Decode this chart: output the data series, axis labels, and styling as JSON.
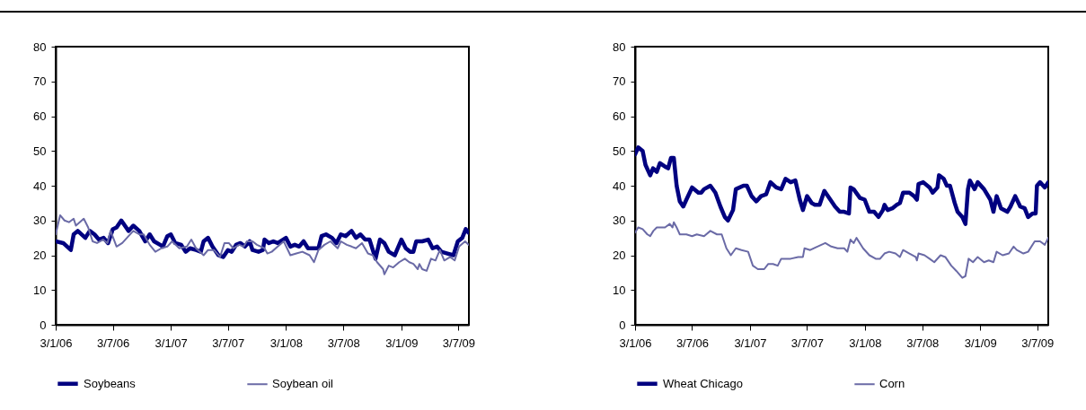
{
  "chart_data": [
    {
      "type": "line",
      "xlim": [
        "2006-01-03",
        "2009-08-05"
      ],
      "ylim": [
        0,
        80
      ],
      "yticks": [
        0,
        10,
        20,
        30,
        40,
        50,
        60,
        70,
        80
      ],
      "xticks": [
        {
          "value": "2006-01-03",
          "label": "3/1/06"
        },
        {
          "value": "2006-07-03",
          "label": "3/7/06"
        },
        {
          "value": "2007-01-03",
          "label": "3/1/07"
        },
        {
          "value": "2007-07-03",
          "label": "3/7/07"
        },
        {
          "value": "2008-01-03",
          "label": "3/1/08"
        },
        {
          "value": "2008-07-03",
          "label": "3/7/08"
        },
        {
          "value": "2009-01-03",
          "label": "3/1/09"
        },
        {
          "value": "2009-07-03",
          "label": "3/7/09"
        }
      ],
      "grid": false,
      "legend": "bottom",
      "series": [
        {
          "name": "Soybeans",
          "color": "#000080",
          "x": [
            "2006-01-03",
            "2006-01-27",
            "2006-02-20",
            "2006-03-01",
            "2006-03-14",
            "2006-04-07",
            "2006-04-21",
            "2006-05-06",
            "2006-05-20",
            "2006-06-04",
            "2006-06-18",
            "2006-07-03",
            "2006-07-15",
            "2006-07-30",
            "2006-08-22",
            "2006-09-06",
            "2006-09-25",
            "2006-10-04",
            "2006-10-14",
            "2006-10-28",
            "2006-11-11",
            "2006-11-30",
            "2006-12-09",
            "2006-12-23",
            "2007-01-03",
            "2007-01-17",
            "2007-02-05",
            "2007-02-19",
            "2007-03-05",
            "2007-03-24",
            "2007-04-08",
            "2007-04-17",
            "2007-05-01",
            "2007-05-15",
            "2007-06-03",
            "2007-06-18",
            "2007-07-03",
            "2007-07-15",
            "2007-07-29",
            "2007-08-12",
            "2007-08-26",
            "2007-09-10",
            "2007-09-19",
            "2007-10-08",
            "2007-10-22",
            "2007-10-27",
            "2007-11-10",
            "2007-11-24",
            "2007-12-08",
            "2008-01-03",
            "2008-01-17",
            "2008-01-31",
            "2008-02-14",
            "2008-02-28",
            "2008-03-13",
            "2008-04-01",
            "2008-04-15",
            "2008-04-25",
            "2008-05-09",
            "2008-05-28",
            "2008-06-11",
            "2008-06-25",
            "2008-07-10",
            "2008-07-29",
            "2008-08-12",
            "2008-08-26",
            "2008-09-10",
            "2008-09-24",
            "2008-10-13",
            "2008-10-27",
            "2008-11-10",
            "2008-11-24",
            "2008-12-13",
            "2009-01-03",
            "2009-01-17",
            "2009-01-31",
            "2009-02-10",
            "2009-02-19",
            "2009-03-10",
            "2009-03-29",
            "2009-04-12",
            "2009-04-26",
            "2009-05-10",
            "2009-05-29",
            "2009-06-17",
            "2009-07-01",
            "2009-07-15",
            "2009-07-26",
            "2009-08-04"
          ],
          "values": [
            24,
            23.5,
            21.5,
            26,
            27,
            25,
            27,
            26,
            24.5,
            25,
            23.5,
            27.5,
            28,
            30,
            27,
            28.5,
            27,
            25.5,
            24,
            26,
            24,
            23,
            22.5,
            25.5,
            26,
            23.5,
            23,
            21,
            22,
            21.5,
            21,
            24,
            25,
            22.5,
            20,
            19.5,
            21.5,
            21,
            23,
            23.5,
            22.5,
            24,
            21.5,
            21,
            21.5,
            24.5,
            23.5,
            24,
            23.5,
            25,
            22.5,
            23,
            22.5,
            24,
            22,
            22,
            22,
            25.5,
            26,
            25,
            23.5,
            26,
            25.5,
            27,
            25,
            26,
            24.5,
            24.5,
            19,
            24.5,
            23.5,
            21,
            20,
            24.5,
            22,
            21,
            21,
            24,
            24,
            24.5,
            22,
            22.5,
            21,
            20.5,
            20,
            24,
            25,
            27.5,
            26.5
          ]
        },
        {
          "name": "Soybean oil",
          "color": "#6a6aa6",
          "x": [
            "2006-01-03",
            "2006-01-17",
            "2006-01-31",
            "2006-02-14",
            "2006-03-01",
            "2006-03-08",
            "2006-04-02",
            "2006-04-16",
            "2006-04-30",
            "2006-05-14",
            "2006-06-02",
            "2006-06-16",
            "2006-06-26",
            "2006-07-15",
            "2006-08-02",
            "2006-09-06",
            "2006-09-25",
            "2006-10-09",
            "2006-10-28",
            "2006-11-15",
            "2006-12-04",
            "2006-12-23",
            "2007-01-07",
            "2007-01-30",
            "2007-02-23",
            "2007-03-09",
            "2007-03-24",
            "2007-04-17",
            "2007-05-01",
            "2007-05-20",
            "2007-06-08",
            "2007-06-22",
            "2007-07-06",
            "2007-07-20",
            "2007-08-08",
            "2007-08-22",
            "2007-09-01",
            "2007-09-19",
            "2007-10-03",
            "2007-10-27",
            "2007-11-05",
            "2007-11-19",
            "2007-12-08",
            "2007-12-27",
            "2008-01-17",
            "2008-02-05",
            "2008-02-24",
            "2008-03-18",
            "2008-04-01",
            "2008-04-15",
            "2008-05-04",
            "2008-05-23",
            "2008-06-15",
            "2008-06-25",
            "2008-07-14",
            "2008-07-29",
            "2008-08-12",
            "2008-08-31",
            "2008-09-19",
            "2008-10-04",
            "2008-10-18",
            "2008-11-06",
            "2008-11-10",
            "2008-11-24",
            "2008-12-08",
            "2008-12-27",
            "2009-01-14",
            "2009-01-28",
            "2009-02-10",
            "2009-02-24",
            "2009-03-01",
            "2009-03-10",
            "2009-03-24",
            "2009-04-07",
            "2009-04-21",
            "2009-05-05",
            "2009-05-19",
            "2009-06-07",
            "2009-06-21",
            "2009-07-05",
            "2009-07-24",
            "2009-08-04"
          ],
          "values": [
            26,
            31.5,
            30,
            29.5,
            30.5,
            28.5,
            30.5,
            28,
            24,
            23.5,
            24.5,
            23.5,
            27,
            22.5,
            23.5,
            27,
            26,
            26,
            23,
            21,
            22,
            22.5,
            24,
            22,
            22.5,
            24.5,
            22,
            20,
            21.5,
            21.5,
            19.5,
            23.5,
            23.5,
            22,
            23,
            22.5,
            24,
            24,
            23,
            22,
            20.5,
            21,
            22.5,
            24,
            20,
            20.5,
            21,
            20,
            18,
            21.5,
            23,
            24,
            22,
            24,
            23,
            22.5,
            22,
            23.5,
            20.5,
            20,
            18,
            16,
            14.5,
            17,
            16.5,
            18,
            19,
            18,
            17.5,
            16,
            17.5,
            16,
            15.5,
            19,
            18.5,
            21.5,
            18.5,
            19.5,
            18.5,
            22.5,
            24,
            23
          ]
        }
      ]
    },
    {
      "type": "line",
      "xlim": [
        "2006-01-03",
        "2009-08-07"
      ],
      "ylim": [
        0,
        80
      ],
      "yticks": [
        0,
        10,
        20,
        30,
        40,
        50,
        60,
        70,
        80
      ],
      "xticks": [
        {
          "value": "2006-01-03",
          "label": "3/1/06"
        },
        {
          "value": "2006-07-03",
          "label": "3/7/06"
        },
        {
          "value": "2007-01-03",
          "label": "3/1/07"
        },
        {
          "value": "2007-07-03",
          "label": "3/7/07"
        },
        {
          "value": "2008-01-03",
          "label": "3/1/08"
        },
        {
          "value": "2008-07-03",
          "label": "3/7/08"
        },
        {
          "value": "2009-01-03",
          "label": "3/1/09"
        },
        {
          "value": "2009-07-03",
          "label": "3/7/09"
        }
      ],
      "grid": false,
      "legend": "bottom",
      "series": [
        {
          "name": "Wheat Chicago",
          "color": "#000080",
          "x": [
            "2006-01-03",
            "2006-01-13",
            "2006-01-27",
            "2006-02-05",
            "2006-02-20",
            "2006-03-01",
            "2006-03-13",
            "2006-03-23",
            "2006-04-08",
            "2006-04-18",
            "2006-04-27",
            "2006-05-06",
            "2006-05-15",
            "2006-05-25",
            "2006-06-05",
            "2006-06-15",
            "2006-07-03",
            "2006-07-23",
            "2006-08-01",
            "2006-08-10",
            "2006-08-30",
            "2006-09-15",
            "2006-10-01",
            "2006-10-15",
            "2006-10-25",
            "2006-11-10",
            "2006-11-19",
            "2006-12-13",
            "2006-12-24",
            "2007-01-08",
            "2007-01-23",
            "2007-02-07",
            "2007-02-23",
            "2007-03-09",
            "2007-03-27",
            "2007-04-12",
            "2007-04-26",
            "2007-05-12",
            "2007-05-27",
            "2007-06-10",
            "2007-06-20",
            "2007-07-03",
            "2007-07-18",
            "2007-07-28",
            "2007-08-12",
            "2007-08-27",
            "2007-09-15",
            "2007-09-30",
            "2007-10-15",
            "2007-10-29",
            "2007-11-13",
            "2007-11-18",
            "2007-11-28",
            "2007-12-18",
            "2008-01-02",
            "2008-01-17",
            "2008-02-01",
            "2008-02-15",
            "2008-02-29",
            "2008-03-05",
            "2008-03-15",
            "2008-03-30",
            "2008-04-13",
            "2008-04-23",
            "2008-05-03",
            "2008-05-23",
            "2008-06-07",
            "2008-06-16",
            "2008-06-21",
            "2008-07-06",
            "2008-07-26",
            "2008-08-05",
            "2008-08-20",
            "2008-08-25",
            "2008-09-09",
            "2008-09-19",
            "2008-09-29",
            "2008-10-14",
            "2008-10-23",
            "2008-11-07",
            "2008-11-17",
            "2008-11-25",
            "2008-12-01",
            "2008-12-16",
            "2008-12-26",
            "2009-01-15",
            "2009-02-04",
            "2009-02-14",
            "2009-02-24",
            "2009-03-10",
            "2009-03-30",
            "2009-04-09",
            "2009-04-24",
            "2009-05-10",
            "2009-05-24",
            "2009-06-04",
            "2009-06-18",
            "2009-06-28",
            "2009-07-02",
            "2009-07-12",
            "2009-07-27",
            "2009-08-07"
          ],
          "values": [
            49,
            51,
            50,
            46,
            43,
            45,
            44,
            46.5,
            45.5,
            45,
            48,
            48,
            40,
            35.5,
            34,
            36,
            39.5,
            38,
            38,
            39,
            40,
            38,
            34,
            31,
            30,
            33,
            39,
            40,
            40,
            37,
            35.5,
            37,
            37.5,
            41,
            39.5,
            39,
            42,
            41,
            41.5,
            36,
            33,
            37,
            35,
            34.5,
            34.5,
            38.5,
            36,
            34,
            32.5,
            32.5,
            32,
            39.5,
            39,
            36.5,
            36,
            32.5,
            32.5,
            31,
            33,
            34.5,
            33,
            33.5,
            34.5,
            35,
            38,
            38,
            37,
            36,
            40.5,
            41,
            39.5,
            38,
            39.5,
            43,
            42,
            40,
            40,
            35,
            32.5,
            31,
            29,
            39,
            41.5,
            39,
            41,
            39,
            36,
            32.5,
            37,
            33.5,
            32.5,
            34,
            37,
            34,
            33.5,
            31,
            32,
            32,
            40,
            41,
            39.5,
            41
          ]
        },
        {
          "name": "Corn",
          "color": "#6a6aa6",
          "x": [
            "2006-01-03",
            "2006-01-13",
            "2006-01-27",
            "2006-02-11",
            "2006-02-20",
            "2006-03-02",
            "2006-03-13",
            "2006-04-08",
            "2006-04-23",
            "2006-05-02",
            "2006-05-06",
            "2006-05-15",
            "2006-05-25",
            "2006-06-15",
            "2006-07-03",
            "2006-07-18",
            "2006-08-10",
            "2006-08-30",
            "2006-09-20",
            "2006-10-05",
            "2006-10-20",
            "2006-11-03",
            "2006-11-19",
            "2006-12-07",
            "2006-12-28",
            "2007-01-12",
            "2007-01-28",
            "2007-02-17",
            "2007-03-02",
            "2007-03-17",
            "2007-04-01",
            "2007-04-12",
            "2007-04-26",
            "2007-05-12",
            "2007-06-05",
            "2007-06-20",
            "2007-06-25",
            "2007-07-13",
            "2007-08-05",
            "2007-08-30",
            "2007-09-18",
            "2007-10-08",
            "2007-10-29",
            "2007-11-08",
            "2007-11-18",
            "2007-11-28",
            "2007-12-07",
            "2007-12-28",
            "2008-01-17",
            "2008-02-06",
            "2008-02-20",
            "2008-03-05",
            "2008-03-20",
            "2008-04-09",
            "2008-04-23",
            "2008-05-03",
            "2008-05-23",
            "2008-06-12",
            "2008-06-16",
            "2008-06-21",
            "2008-07-10",
            "2008-07-26",
            "2008-08-10",
            "2008-08-30",
            "2008-09-14",
            "2008-10-03",
            "2008-10-19",
            "2008-11-07",
            "2008-11-17",
            "2008-11-27",
            "2008-12-11",
            "2008-12-26",
            "2009-01-15",
            "2009-01-30",
            "2009-02-14",
            "2009-02-24",
            "2009-03-15",
            "2009-04-04",
            "2009-04-19",
            "2009-04-29",
            "2009-05-20",
            "2009-06-04",
            "2009-06-25",
            "2009-07-12",
            "2009-07-27",
            "2009-08-07"
          ],
          "values": [
            26.5,
            28,
            27.5,
            26,
            25.5,
            27,
            28,
            28,
            29,
            28,
            29.5,
            28,
            26,
            26,
            25.5,
            26,
            25.5,
            27,
            26,
            26,
            22,
            20,
            22,
            21.5,
            21,
            17,
            16,
            16,
            17.5,
            17.5,
            17,
            19,
            19,
            19,
            19.5,
            19.5,
            22,
            21.5,
            22.5,
            23.5,
            22.5,
            22,
            22,
            21,
            24.5,
            23.5,
            25,
            22,
            20,
            19,
            19,
            20.5,
            21,
            20.5,
            19.5,
            21.5,
            20.5,
            19.5,
            18.5,
            20.5,
            20,
            19,
            18,
            20,
            19.5,
            17,
            15.5,
            13.5,
            14,
            19,
            18,
            19.5,
            18,
            18.5,
            18,
            21,
            20,
            20.5,
            22.5,
            21.5,
            20.5,
            21,
            24,
            24,
            23,
            25
          ]
        }
      ]
    }
  ]
}
